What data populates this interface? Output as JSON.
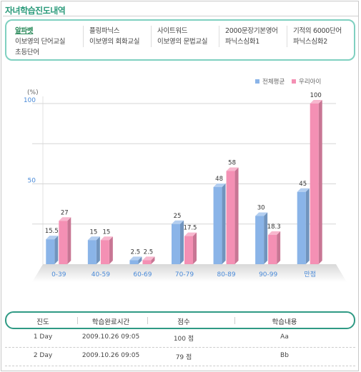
{
  "header": {
    "title": "자녀학습진도내역"
  },
  "menu": [
    [
      "알파벳",
      "이보영의 단어교실",
      "초등단어"
    ],
    [
      "플링파닉스",
      "이보영의 회화교실"
    ],
    [
      "사이트워드",
      "이보영의 문법교실"
    ],
    [
      "2000문장기본영어",
      "파닉스심화1"
    ],
    [
      "기적의 6000단어",
      "파닉스심화2"
    ]
  ],
  "chart_data": {
    "type": "bar3d",
    "ylabel": "(%)",
    "categories": [
      "0-39",
      "40-59",
      "60-69",
      "70-79",
      "80-89",
      "90-99",
      "만점"
    ],
    "series": [
      {
        "name": "전체평균",
        "color": "#8ab4e8",
        "values": [
          15.5,
          15,
          2.5,
          25,
          48,
          30,
          45
        ]
      },
      {
        "name": "우리아이",
        "color": "#f490b4",
        "values": [
          27,
          15,
          2.5,
          17.5,
          58,
          18.3,
          100
        ]
      }
    ],
    "ylim": [
      0,
      100
    ],
    "yticks": [
      50,
      100
    ],
    "minor_yticks": [
      25,
      75
    ],
    "grid": true,
    "legend": "top-right"
  },
  "table": {
    "columns": [
      "진도",
      "학습완료시간",
      "점수",
      "학습내용"
    ],
    "rows": [
      [
        "1 Day",
        "2009.10.26 09:05",
        "100 점",
        "Aa"
      ],
      [
        "2 Day",
        "2009.10.26 09:05",
        "79 점",
        "Bb"
      ]
    ]
  }
}
